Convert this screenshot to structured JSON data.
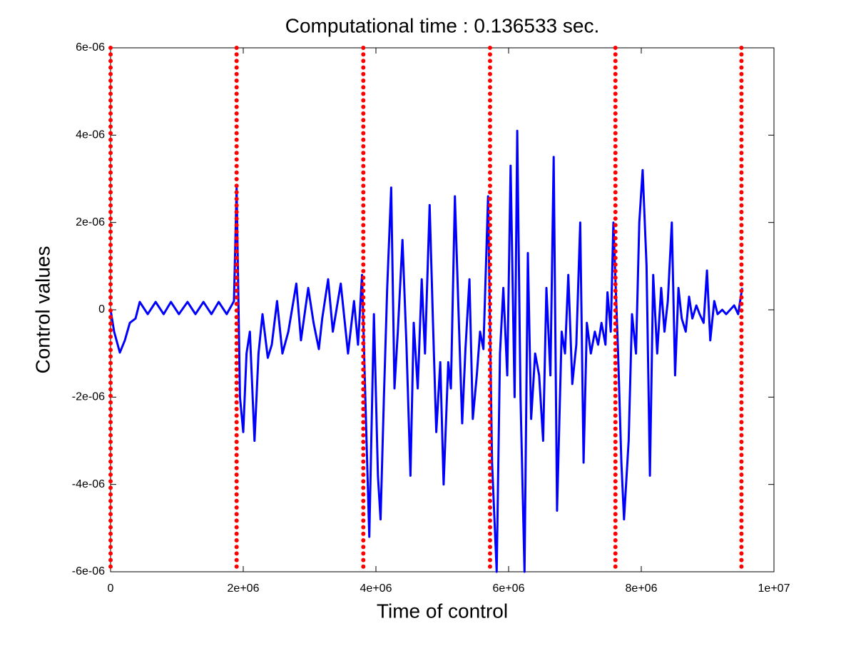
{
  "chart_data": {
    "type": "line",
    "title": "Computational time : 0.136533 sec.",
    "xlabel": "Time of control",
    "ylabel": "Control values",
    "xlim": [
      0,
      10000000.0
    ],
    "ylim": [
      -6e-06,
      6e-06
    ],
    "xticks": [
      0,
      {
        "value": 2000000.0,
        "label": "2e+06"
      },
      {
        "value": 4000000.0,
        "label": "4e+06"
      },
      {
        "value": 6000000.0,
        "label": "6e+06"
      },
      {
        "value": 8000000.0,
        "label": "8e+06"
      },
      {
        "value": 10000000.0,
        "label": "1e+07"
      }
    ],
    "yticks": [
      {
        "value": -6e-06,
        "label": "-6e-06"
      },
      {
        "value": -4e-06,
        "label": "-4e-06"
      },
      {
        "value": -2e-06,
        "label": "-2e-06"
      },
      0,
      {
        "value": 2e-06,
        "label": "2e-06"
      },
      {
        "value": 4e-06,
        "label": "4e-06"
      },
      {
        "value": 6e-06,
        "label": "6e-06"
      }
    ],
    "vlines": [
      0,
      1900000.0,
      3810000.0,
      5720000.0,
      7610000.0,
      9510000.0
    ],
    "vline_color": "#ff0000",
    "series": [
      {
        "color": "#0000ff",
        "x": [
          0,
          54000.0,
          140000.0,
          215000.0,
          290000.0,
          376000.0,
          440000.0,
          560000.0,
          680000.0,
          800000.0,
          910000.0,
          1030000.0,
          1160000.0,
          1280000.0,
          1400000.0,
          1520000.0,
          1630000.0,
          1750000.0,
          1860000.0,
          1900000.0,
          1950000.0,
          2000000.0,
          2050000.0,
          2100000.0,
          2170000.0,
          2230000.0,
          2290000.0,
          2370000.0,
          2430000.0,
          2510000.0,
          2590000.0,
          2680000.0,
          2800000.0,
          2870000.0,
          2980000.0,
          3060000.0,
          3140000.0,
          3190000.0,
          3280000.0,
          3350000.0,
          3470000.0,
          3580000.0,
          3670000.0,
          3730000.0,
          3790000.0,
          3840000.0,
          3900000.0,
          3970000.0,
          4030000.0,
          4070000.0,
          4120000.0,
          4170000.0,
          4230000.0,
          4280000.0,
          4330000.0,
          4400000.0,
          4460000.0,
          4520000.0,
          4570000.0,
          4630000.0,
          4690000.0,
          4740000.0,
          4810000.0,
          4860000.0,
          4910000.0,
          4970000.0,
          5020000.0,
          5090000.0,
          5130000.0,
          5190000.0,
          5250000.0,
          5300000.0,
          5350000.0,
          5410000.0,
          5460000.0,
          5520000.0,
          5570000.0,
          5620000.0,
          5690000.0,
          5750000.0,
          5820000.0,
          5870000.0,
          5920000.0,
          5980000.0,
          6030000.0,
          6090000.0,
          6130000.0,
          6180000.0,
          6240000.0,
          6290000.0,
          6340000.0,
          6400000.0,
          6460000.0,
          6520000.0,
          6570000.0,
          6630000.0,
          6680000.0,
          6730000.0,
          6800000.0,
          6850000.0,
          6900000.0,
          6960000.0,
          7020000.0,
          7080000.0,
          7130000.0,
          7180000.0,
          7240000.0,
          7300000.0,
          7350000.0,
          7400000.0,
          7460000.0,
          7490000.0,
          7540000.0,
          7580000.0,
          7650000.0,
          7700000.0,
          7740000.0,
          7810000.0,
          7860000.0,
          7920000.0,
          7970000.0,
          8020000.0,
          8080000.0,
          8130000.0,
          8180000.0,
          8240000.0,
          8300000.0,
          8350000.0,
          8400000.0,
          8460000.0,
          8510000.0,
          8560000.0,
          8610000.0,
          8670000.0,
          8720000.0,
          8770000.0,
          8830000.0,
          8880000.0,
          8940000.0,
          8990000.0,
          9040000.0,
          9100000.0,
          9150000.0,
          9220000.0,
          9280000.0,
          9340000.0,
          9400000.0,
          9460000.0,
          9520000.0
        ],
        "values": [
          0,
          -5e-07,
          -9.8e-07,
          -7e-07,
          -3e-07,
          -2e-07,
          1.8e-07,
          -1e-07,
          1.8e-07,
          -1e-07,
          1.8e-07,
          -1e-07,
          1.8e-07,
          -1e-07,
          1.8e-07,
          -1e-07,
          1.8e-07,
          -1e-07,
          2e-07,
          2.8e-06,
          -2e-06,
          -2.8e-06,
          -1e-06,
          -5e-07,
          -3e-06,
          -1e-06,
          -1e-07,
          -1.1e-06,
          -8e-07,
          2e-07,
          -1e-06,
          -5e-07,
          6e-07,
          -7e-07,
          5e-07,
          -3e-07,
          -9e-07,
          -2e-07,
          7e-07,
          -5e-07,
          6e-07,
          -1e-06,
          2e-07,
          -8e-07,
          8e-07,
          -2e-06,
          -5.2e-06,
          -1e-07,
          -3.8e-06,
          -4.8e-06,
          -2e-06,
          5e-07,
          2.8e-06,
          -1.8e-06,
          -5e-07,
          1.6e-06,
          -8e-07,
          -3.8e-06,
          -3e-07,
          -1.8e-06,
          7e-07,
          -1e-06,
          2.4e-06,
          -3e-07,
          -2.8e-06,
          -1.2e-06,
          -4e-06,
          -1.2e-06,
          -1.8e-06,
          2.6e-06,
          -3e-07,
          -2.6e-06,
          -9e-07,
          7e-07,
          -2.5e-06,
          -1.5e-06,
          -5e-07,
          -9e-07,
          2.6e-06,
          -3.5e-06,
          -6e-06,
          -1e-06,
          5e-07,
          -1.5e-06,
          3.3e-06,
          -2e-06,
          4.1e-06,
          -2e-06,
          -6e-06,
          1.3e-06,
          -2.5e-06,
          -1e-06,
          -1.5e-06,
          -3e-06,
          5e-07,
          -1.5e-06,
          3.5e-06,
          -4.6e-06,
          -5e-07,
          -1e-06,
          8e-07,
          -1.7e-06,
          -8e-07,
          2e-06,
          -3.5e-06,
          -3e-07,
          -1e-06,
          -5e-07,
          -8e-07,
          -3e-07,
          -8e-07,
          4e-07,
          -5e-07,
          2e-06,
          -1e-06,
          -3.5e-06,
          -4.8e-06,
          -3e-06,
          -1e-07,
          -1e-06,
          2e-06,
          3.2e-06,
          1e-06,
          -3.8e-06,
          8e-07,
          -1e-06,
          5e-07,
          -5e-07,
          2e-07,
          2e-06,
          -1.5e-06,
          5e-07,
          -2e-07,
          -5e-07,
          3e-07,
          -2e-07,
          1e-07,
          -1e-07,
          -3e-07,
          9e-07,
          -7e-07,
          2e-07,
          -1e-07,
          0,
          -1e-07,
          0,
          1e-07,
          -1e-07,
          5e-07
        ]
      }
    ]
  }
}
